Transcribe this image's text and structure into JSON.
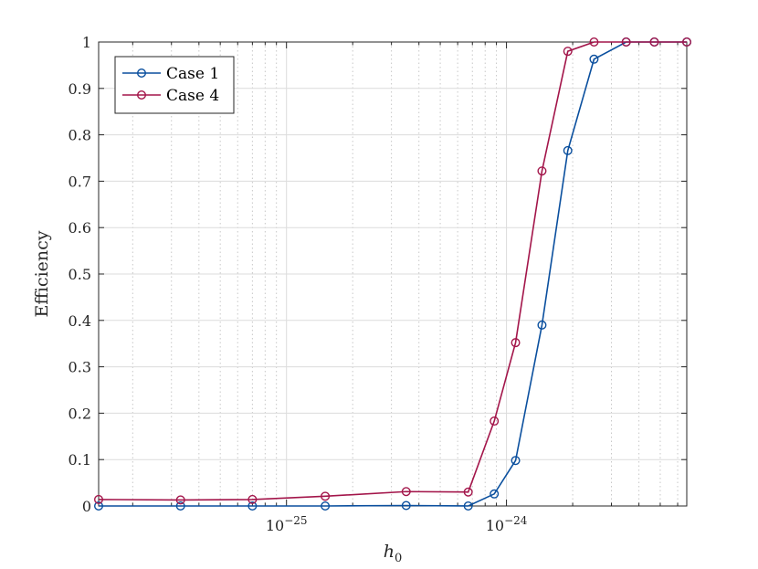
{
  "chart_data": {
    "type": "line",
    "xlabel": "h",
    "xlabel_sub": "0",
    "ylabel": "Efficiency",
    "x_scale": "log",
    "xlim": [
      1.4e-26,
      6.6e-24
    ],
    "ylim": [
      0,
      1
    ],
    "y_ticks": [
      0,
      0.1,
      0.2,
      0.3,
      0.4,
      0.5,
      0.6,
      0.7,
      0.8,
      0.9,
      1
    ],
    "y_tick_labels": [
      "0",
      "0.1",
      "0.2",
      "0.3",
      "0.4",
      "0.5",
      "0.6",
      "0.7",
      "0.8",
      "0.9",
      "1"
    ],
    "x_major_ticks": [
      {
        "value": 1e-25,
        "base": "10",
        "exp": "−25"
      },
      {
        "value": 1e-24,
        "base": "10",
        "exp": "−24"
      }
    ],
    "x_minor_ticks": [
      2e-26,
      3e-26,
      4e-26,
      5e-26,
      6e-26,
      7e-26,
      8e-26,
      9e-26,
      2e-25,
      3e-25,
      4e-25,
      5e-25,
      6e-25,
      7e-25,
      8e-25,
      9e-25,
      2e-24,
      3e-24,
      4e-24,
      5e-24,
      6e-24
    ],
    "grid": true,
    "legend_position": "top-left",
    "series": [
      {
        "name": "Case 1",
        "color": "#0a4f9e",
        "x": [
          1.4e-26,
          3.3e-26,
          7e-26,
          1.5e-25,
          3.5e-25,
          6.7e-25,
          8.8e-25,
          1.1e-24,
          1.45e-24,
          1.9e-24,
          2.5e-24,
          3.5e-24,
          4.7e-24,
          6.6e-24
        ],
        "values": [
          0.0,
          0.0,
          0.0,
          0.0,
          0.001,
          0.0,
          0.026,
          0.098,
          0.39,
          0.766,
          0.963,
          1.0,
          1.0,
          1.0
        ]
      },
      {
        "name": "Case 4",
        "color": "#a3154a",
        "x": [
          1.4e-26,
          3.3e-26,
          7e-26,
          1.5e-25,
          3.5e-25,
          6.7e-25,
          8.8e-25,
          1.1e-24,
          1.45e-24,
          1.9e-24,
          2.5e-24,
          3.5e-24,
          4.7e-24,
          6.6e-24
        ],
        "values": [
          0.014,
          0.013,
          0.014,
          0.021,
          0.031,
          0.03,
          0.183,
          0.352,
          0.722,
          0.98,
          1.0,
          1.0,
          1.0,
          1.0
        ]
      }
    ]
  }
}
